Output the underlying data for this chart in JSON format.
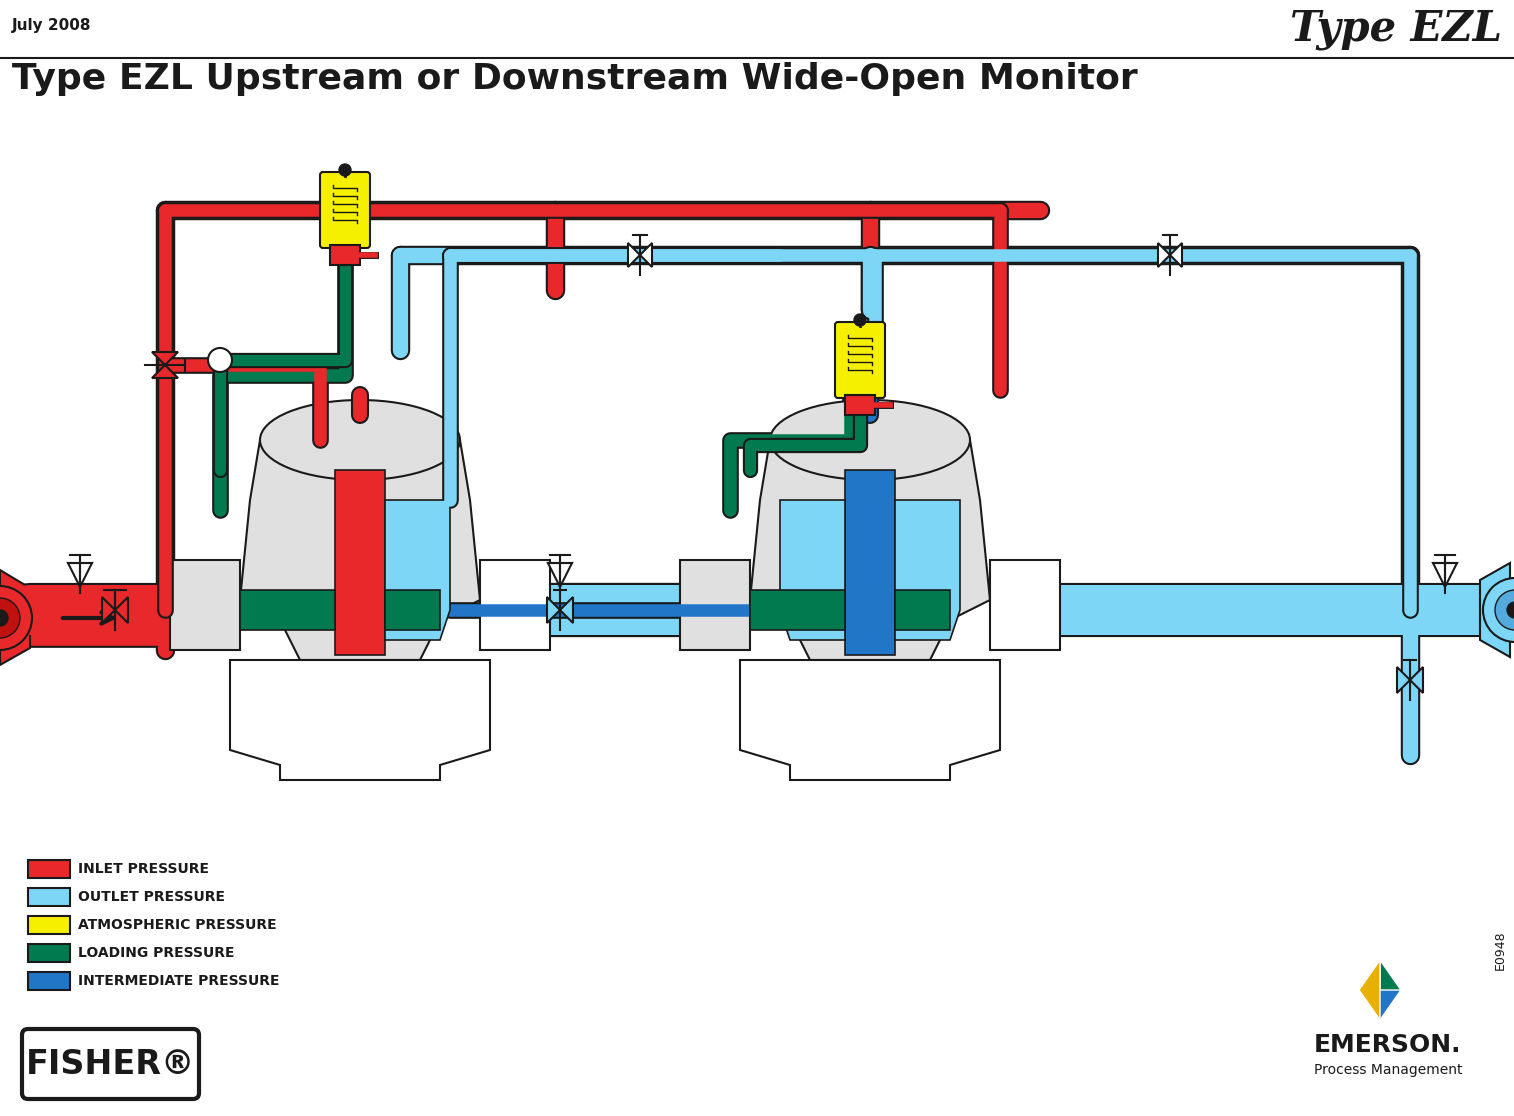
{
  "title_right": "Type EZL",
  "title_main": "Type EZL Upstream or Downstream Wide-Open Monitor",
  "date_text": "July 2008",
  "doc_number": "E0948",
  "background_color": "#ffffff",
  "legend_items": [
    {
      "label": "INLET PRESSURE",
      "color": "#e8282a"
    },
    {
      "label": "OUTLET PRESSURE",
      "color": "#7dd6f5"
    },
    {
      "label": "ATMOSPHERIC PRESSURE",
      "color": "#f5ef00"
    },
    {
      "label": "LOADING PRESSURE",
      "color": "#007a4e"
    },
    {
      "label": "INTERMEDIATE PRESSURE",
      "color": "#2176c8"
    }
  ],
  "colors": {
    "inlet": "#e8282a",
    "outlet": "#7dd6f5",
    "loading": "#007a4e",
    "intermediate": "#2176c8",
    "atmospheric": "#f5ef00",
    "black": "#1a1a1a",
    "white": "#ffffff",
    "lgray": "#e0e0e0",
    "gray": "#b0b0b0",
    "yellow": "#f5ef00"
  },
  "figsize": [
    15.14,
    11.16
  ],
  "dpi": 100
}
